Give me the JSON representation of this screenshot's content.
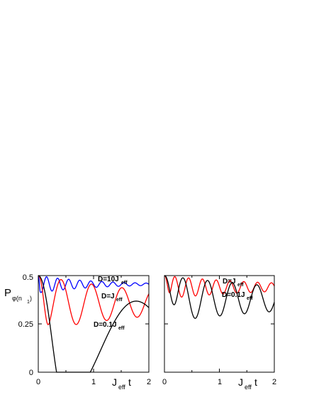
{
  "chart_data": [
    {
      "type": "line",
      "ylabel": "P",
      "ylabel_sub": "φ(n",
      "ylabel_sub2": "1",
      "ylabel_close": ")",
      "xlabel_main": "J",
      "xlabel_sub": "eff",
      "xlabel_tail": "t",
      "xlim": [
        0,
        2
      ],
      "ylim": [
        0,
        0.5
      ],
      "xticks": [
        "0",
        "1",
        "2"
      ],
      "yticks": [
        "0",
        "0.25",
        "0.5"
      ],
      "grid": false,
      "series": [
        {
          "name": "D=10J_eff",
          "color": "#0000ff",
          "model": {
            "y0": 0.5,
            "yinf": 0.455,
            "omega": 31.4,
            "decay": 1.0,
            "tau": 0.035
          }
        },
        {
          "name": "D=J_eff",
          "color": "#ff0000",
          "model": {
            "y0": 0.5,
            "yinf": 0.357,
            "omega": 11.4,
            "decay": 0.38,
            "tau": 0.2
          }
        },
        {
          "name": "D=0.1J_eff",
          "color": "#000000",
          "model": {
            "y0": 0.5,
            "yinf": 0.165,
            "omega": 2.6,
            "decay": 0.28,
            "tau": 0.42
          }
        }
      ],
      "annotations": [
        {
          "main": "D=10J",
          "sub": "eff",
          "x": 1.1,
          "y": 0.47
        },
        {
          "main": "D=J",
          "sub": "eff",
          "x": 1.15,
          "y": 0.39
        },
        {
          "main": "D=0.1J",
          "sub": "eff",
          "x": 1.03,
          "y": 0.245
        }
      ]
    },
    {
      "type": "line",
      "xlabel_main": "J",
      "xlabel_sub": "eff",
      "xlabel_tail": "t",
      "xlim": [
        0,
        2
      ],
      "ylim": [
        0,
        0.5
      ],
      "xticks": [
        "0",
        "1",
        "2"
      ],
      "yticks": [],
      "grid": false,
      "series": [
        {
          "name": "D=J_eff",
          "color": "#ff0000",
          "model": {
            "y0": 0.5,
            "yinf": 0.44,
            "omega": 25,
            "decay": 0.5,
            "tau": 0.12
          }
        },
        {
          "name": "D=0.1J_eff",
          "color": "#000000",
          "model": {
            "y0": 0.5,
            "yinf": 0.38,
            "omega": 14,
            "decay": 0.3,
            "tau": 0.25
          }
        }
      ],
      "annotations": [
        {
          "main": "D=J",
          "sub": "eff",
          "x": 1.05,
          "y": 0.475
        },
        {
          "main": "D=0.1J",
          "sub": "eff",
          "x": 1.05,
          "y": 0.4
        }
      ]
    }
  ]
}
